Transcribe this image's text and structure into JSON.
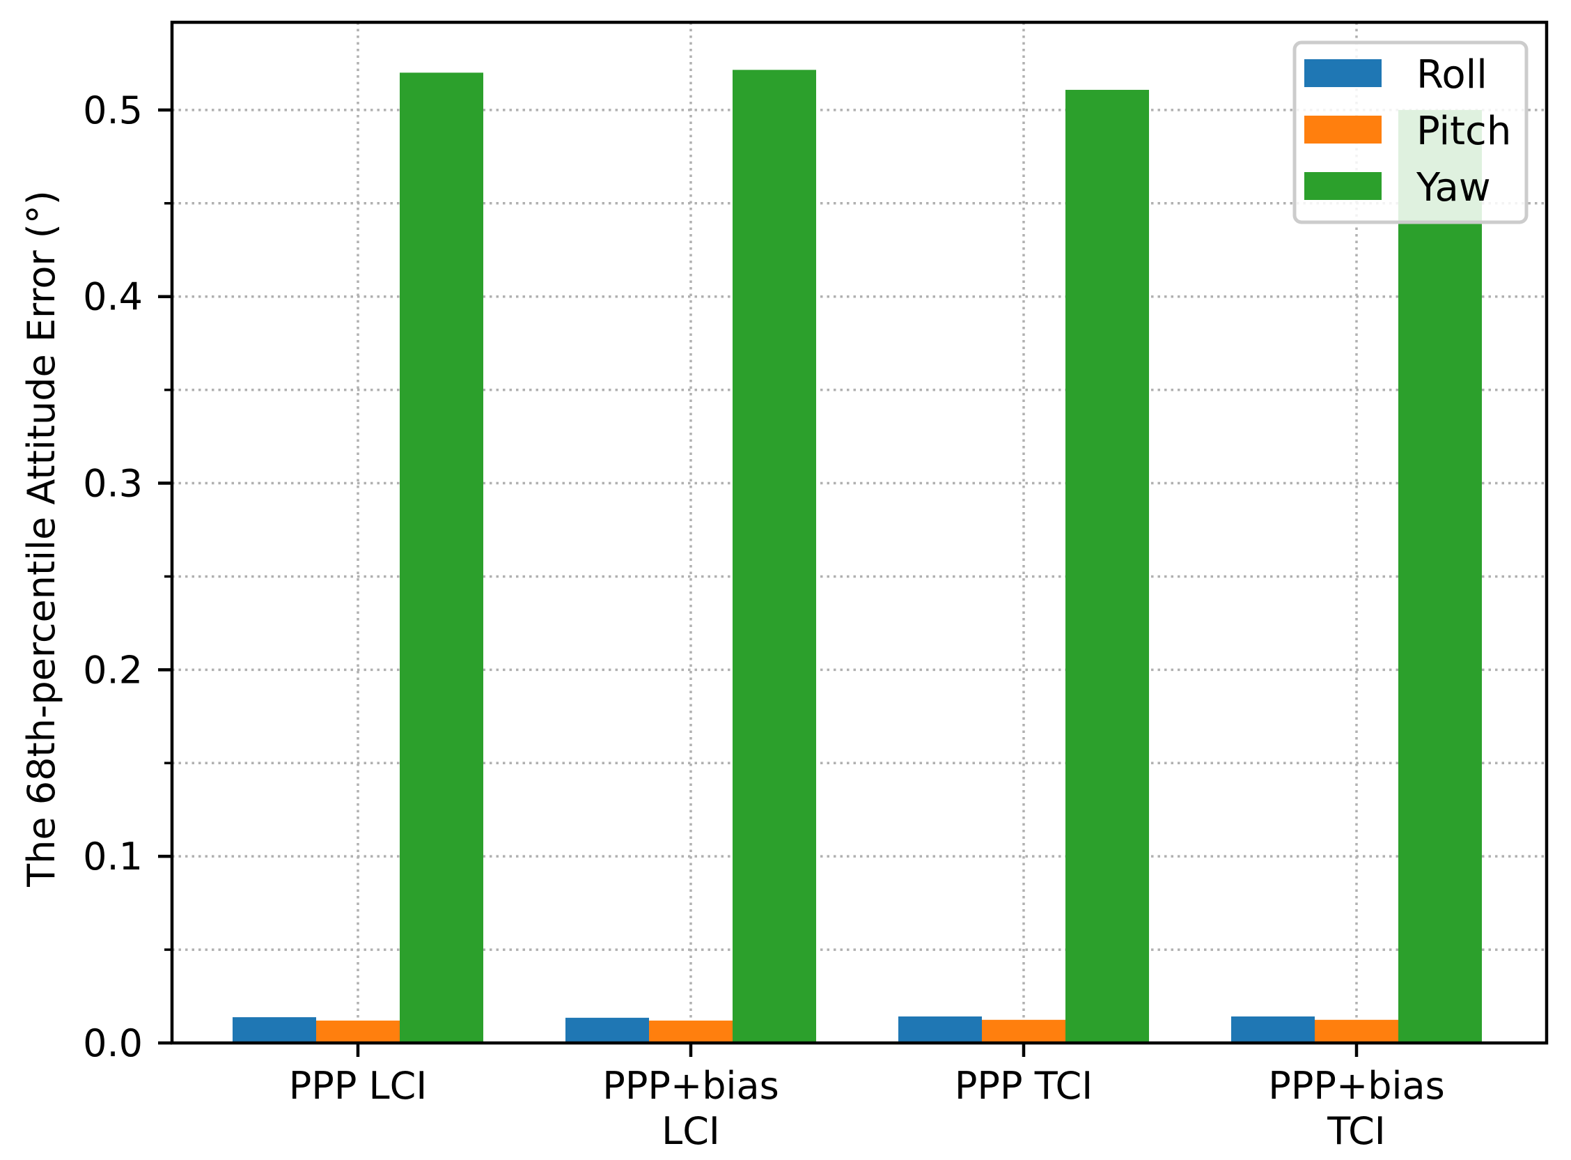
{
  "chart_data": {
    "type": "bar",
    "title": "",
    "xlabel": "",
    "ylabel": "The 68th-percentile Attitude Error ($^\\circ$)",
    "ylabel_display": "The 68th-percentile Attitude Error (°)",
    "categories": [
      [
        "PPP LCI"
      ],
      [
        "PPP+bias",
        "LCI"
      ],
      [
        "PPP TCI"
      ],
      [
        "PPP+bias",
        "TCI"
      ]
    ],
    "ylim": [
      0,
      0.547
    ],
    "yticks": [
      "0.0",
      "0.1",
      "0.2",
      "0.3",
      "0.4",
      "0.5"
    ],
    "grid": true,
    "legend_position": "top-right",
    "series": [
      {
        "name": "Roll",
        "color": "#1f77b4",
        "values": [
          0.0138,
          0.0135,
          0.0142,
          0.0142
        ]
      },
      {
        "name": "Pitch",
        "color": "#ff7f0e",
        "values": [
          0.012,
          0.012,
          0.0124,
          0.0124
        ]
      },
      {
        "name": "Yaw",
        "color": "#2ca02c",
        "values": [
          0.52,
          0.5215,
          0.5108,
          0.5
        ]
      }
    ]
  }
}
